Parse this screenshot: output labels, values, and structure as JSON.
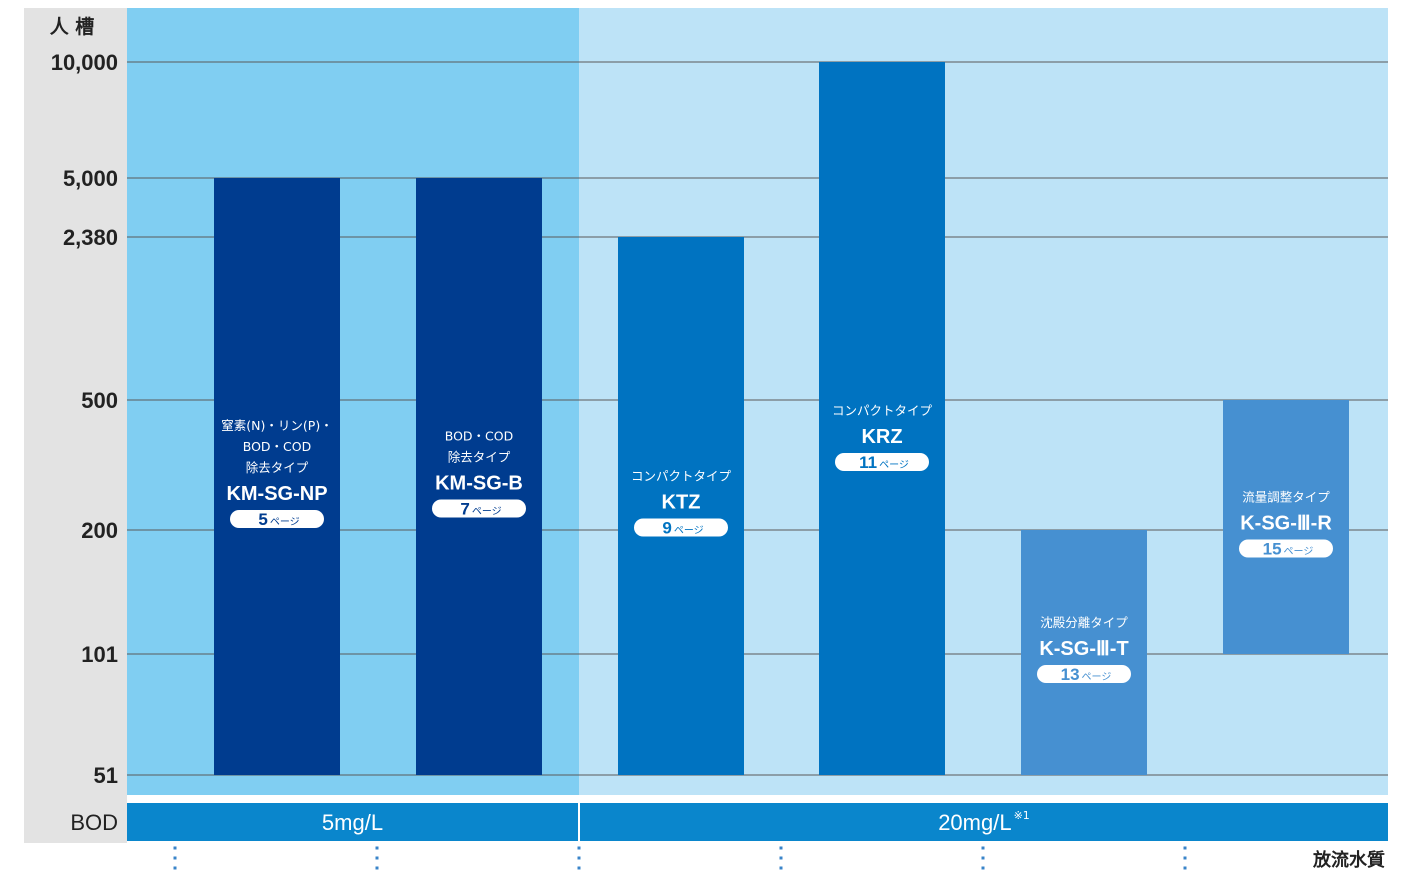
{
  "chart_data": {
    "type": "bar",
    "y_unit_label": "人 槽",
    "y_scale": "custom",
    "y_ticks": [
      "10,000",
      "5,000",
      "2,380",
      "500",
      "200",
      "101",
      "51"
    ],
    "x_title": "放流水質",
    "bod_row": {
      "label": "BOD",
      "groups": [
        {
          "value": "5mg/L",
          "note": ""
        },
        {
          "value": "20mg/L",
          "note": "※1"
        }
      ]
    },
    "bars": [
      {
        "model": "KM-SG-NP",
        "type_lines": [
          "窒素(N)・リン(P)・",
          "BOD・COD",
          "除去タイプ"
        ],
        "page_num": "5",
        "page_suffix": "ページ",
        "range": [
          51,
          5000
        ],
        "color": "#003c8f"
      },
      {
        "model": "KM-SG-B",
        "type_lines": [
          "BOD・COD",
          "除去タイプ"
        ],
        "page_num": "7",
        "page_suffix": "ページ",
        "range": [
          51,
          5000
        ],
        "color": "#003c8f"
      },
      {
        "model": "KTZ",
        "type_lines": [
          "コンパクトタイプ"
        ],
        "page_num": "9",
        "page_suffix": "ページ",
        "range": [
          51,
          2380
        ],
        "color": "#0073c1"
      },
      {
        "model": "KRZ",
        "type_lines": [
          "コンパクトタイプ"
        ],
        "page_num": "11",
        "page_suffix": "ページ",
        "range": [
          51,
          10000
        ],
        "color": "#0073c1"
      },
      {
        "model": "K-SG-Ⅲ-T",
        "type_lines": [
          "沈殿分離タイプ"
        ],
        "page_num": "13",
        "page_suffix": "ページ",
        "range": [
          51,
          200
        ],
        "color": "#4690d1"
      },
      {
        "model": "K-SG-Ⅲ-R",
        "type_lines": [
          "流量調整タイプ"
        ],
        "page_num": "15",
        "page_suffix": "ページ",
        "range": [
          101,
          500
        ],
        "color": "#4690d1"
      }
    ],
    "colors": {
      "axis_panel": "#e3e3e3",
      "region_5mg": "#80cef2",
      "region_20mg": "#bde3f7",
      "bod_bar": "#0a86cc",
      "grid": "#5a5a5a",
      "dots": "#3a84c9"
    }
  }
}
